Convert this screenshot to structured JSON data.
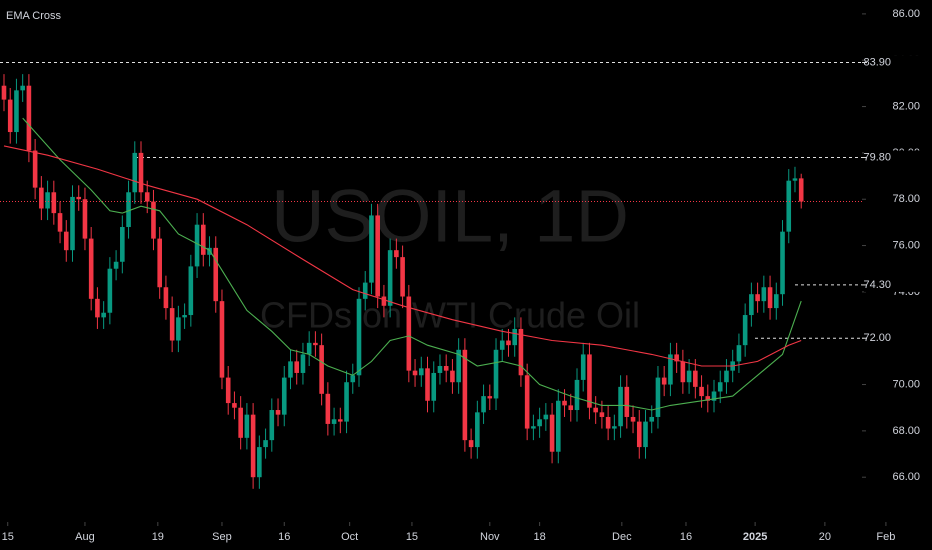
{
  "chart_data": {
    "type": "candlestick",
    "title": "EMA Cross",
    "watermark_title": "USOIL, 1D",
    "watermark_subtitle": "CFDs on WTI Crude Oil",
    "up_color": "#089981",
    "down_color": "#f23645",
    "x": [
      0,
      1,
      2,
      3,
      4,
      5,
      6,
      7,
      8,
      9,
      10,
      11,
      12,
      13,
      14,
      15,
      16,
      17,
      18,
      19,
      20,
      21,
      22,
      23,
      24,
      25,
      26,
      27,
      28,
      29,
      30,
      31,
      32,
      33,
      34,
      35,
      36,
      37,
      38,
      39,
      40,
      41,
      42,
      43,
      44,
      45,
      46,
      47,
      48,
      49,
      50,
      51,
      52,
      53,
      54,
      55,
      56,
      57,
      58,
      59,
      60,
      61,
      62,
      63,
      64,
      65,
      66,
      67,
      68,
      69,
      70,
      71,
      72,
      73,
      74,
      75,
      76,
      77,
      78,
      79,
      80,
      81,
      82,
      83,
      84,
      85,
      86,
      87,
      88,
      89,
      90,
      91,
      92,
      93,
      94,
      95,
      96,
      97,
      98,
      99,
      100,
      101,
      102,
      103,
      104,
      105,
      106,
      107,
      108,
      109,
      110,
      111,
      112,
      113,
      114,
      115,
      116,
      117,
      118,
      119,
      120,
      121,
      122,
      123,
      124,
      125,
      126,
      127,
      128
    ],
    "open": [
      82.9,
      82.3,
      80.9,
      82.7,
      82.9,
      80.1,
      78.5,
      77.6,
      78.3,
      77.4,
      76.6,
      75.8,
      78.1,
      78.0,
      76.3,
      73.7,
      72.9,
      73.1,
      75.0,
      75.3,
      76.8,
      78.3,
      80.0,
      78.3,
      77.9,
      76.3,
      74.2,
      73.3,
      71.9,
      72.9,
      73.0,
      75.1,
      76.9,
      75.6,
      75.9,
      73.6,
      70.3,
      69.2,
      69.0,
      67.7,
      68.7,
      66.0,
      67.3,
      67.6,
      68.9,
      68.7,
      70.3,
      71.0,
      70.5,
      71.3,
      71.8,
      71.7,
      69.6,
      68.3,
      68.5,
      68.4,
      70.1,
      70.4,
      73.7,
      74.4,
      77.3,
      73.8,
      73.4,
      75.8,
      75.5,
      73.8,
      70.6,
      70.4,
      70.7,
      69.3,
      70.5,
      70.8,
      70.6,
      70.1,
      71.5,
      67.6,
      67.3,
      68.8,
      69.5,
      69.4,
      71.5,
      71.9,
      71.7,
      72.4,
      70.4,
      68.1,
      68.2,
      68.5,
      68.7,
      67.1,
      69.3,
      69.1,
      68.9,
      70.2,
      71.3,
      69.0,
      68.8,
      68.6,
      68.1,
      68.2,
      69.9,
      68.6,
      68.4,
      67.3,
      68.4,
      68.6,
      70.3,
      70.0,
      71.3,
      71.0,
      70.1,
      70.6,
      69.9,
      69.5,
      69.3,
      69.7,
      70.1,
      70.6,
      71.0,
      71.7,
      73.0,
      73.9,
      73.6,
      74.2,
      73.3,
      73.9,
      76.6,
      78.8,
      78.9
    ],
    "high": [
      83.4,
      82.8,
      83.2,
      83.4,
      83.4,
      80.6,
      79.0,
      78.8,
      78.8,
      77.9,
      77.1,
      78.6,
      78.6,
      78.5,
      76.8,
      74.2,
      73.6,
      75.5,
      75.8,
      77.3,
      78.8,
      80.5,
      80.5,
      78.8,
      78.4,
      76.8,
      74.7,
      73.8,
      73.4,
      73.5,
      75.6,
      77.4,
      77.4,
      76.4,
      76.4,
      74.1,
      70.8,
      69.7,
      69.5,
      69.2,
      69.2,
      67.8,
      68.1,
      69.4,
      69.4,
      70.8,
      71.5,
      71.5,
      71.8,
      72.3,
      72.3,
      72.2,
      70.1,
      69.0,
      69.0,
      70.6,
      70.9,
      74.2,
      74.9,
      77.8,
      77.8,
      74.3,
      76.3,
      76.3,
      76.0,
      74.3,
      71.1,
      71.2,
      71.2,
      71.0,
      71.3,
      71.3,
      71.1,
      72.0,
      72.0,
      68.1,
      69.3,
      70.0,
      70.0,
      72.0,
      72.4,
      72.4,
      72.9,
      72.9,
      70.9,
      68.7,
      69.0,
      69.2,
      69.2,
      69.8,
      69.8,
      69.6,
      70.7,
      71.8,
      71.8,
      69.5,
      69.3,
      69.1,
      68.7,
      70.4,
      70.4,
      69.1,
      68.9,
      68.9,
      69.1,
      70.8,
      70.8,
      71.8,
      71.8,
      71.5,
      71.1,
      71.1,
      70.4,
      70.0,
      70.2,
      70.6,
      71.1,
      71.5,
      72.2,
      73.5,
      74.4,
      74.4,
      74.7,
      74.7,
      74.4,
      77.1,
      79.3,
      79.4,
      79.1
    ],
    "low": [
      81.8,
      80.4,
      80.4,
      82.2,
      79.6,
      78.0,
      77.1,
      77.1,
      76.9,
      76.1,
      75.3,
      75.3,
      77.5,
      75.8,
      73.2,
      72.4,
      72.4,
      72.6,
      74.5,
      74.8,
      76.3,
      77.8,
      77.8,
      77.4,
      75.8,
      73.7,
      72.8,
      71.4,
      71.4,
      72.4,
      72.5,
      74.6,
      75.1,
      75.1,
      73.1,
      69.8,
      68.7,
      68.5,
      67.2,
      67.2,
      65.5,
      65.5,
      66.8,
      67.1,
      68.2,
      68.2,
      69.8,
      70.0,
      70.0,
      70.8,
      71.2,
      69.1,
      67.8,
      67.8,
      67.9,
      67.9,
      69.6,
      69.9,
      73.2,
      73.9,
      73.3,
      72.9,
      72.9,
      75.0,
      73.3,
      70.1,
      69.9,
      69.9,
      68.8,
      68.8,
      70.0,
      70.1,
      69.6,
      69.6,
      67.1,
      66.8,
      66.8,
      68.3,
      68.9,
      68.9,
      71.0,
      71.2,
      71.2,
      69.9,
      67.6,
      67.6,
      67.7,
      68.0,
      66.6,
      66.6,
      68.6,
      68.4,
      68.4,
      69.7,
      68.5,
      68.3,
      68.1,
      67.6,
      67.6,
      67.7,
      68.1,
      67.9,
      66.8,
      66.8,
      67.9,
      68.1,
      69.5,
      69.5,
      70.5,
      69.6,
      69.6,
      69.4,
      69.0,
      68.8,
      68.8,
      69.2,
      69.6,
      70.1,
      70.5,
      71.2,
      72.5,
      73.1,
      73.1,
      72.8,
      72.8,
      73.4,
      76.1,
      78.3,
      77.6
    ],
    "close": [
      82.3,
      80.9,
      82.7,
      82.9,
      80.1,
      78.5,
      77.6,
      78.3,
      77.4,
      76.6,
      75.8,
      78.1,
      78.0,
      76.3,
      73.7,
      72.9,
      73.1,
      75.0,
      75.3,
      76.8,
      78.3,
      80.0,
      78.3,
      77.9,
      76.3,
      74.2,
      73.3,
      71.9,
      72.9,
      73.0,
      75.1,
      76.9,
      75.6,
      75.9,
      73.6,
      70.3,
      69.2,
      69.0,
      67.7,
      68.7,
      66.0,
      67.3,
      67.6,
      68.9,
      68.7,
      70.3,
      71.0,
      70.5,
      71.3,
      71.8,
      71.7,
      69.6,
      68.3,
      68.5,
      68.4,
      70.1,
      70.4,
      73.7,
      74.4,
      77.3,
      73.8,
      73.4,
      75.8,
      75.5,
      73.8,
      70.6,
      70.4,
      70.7,
      69.3,
      70.5,
      70.8,
      70.6,
      70.1,
      71.5,
      67.6,
      67.3,
      68.8,
      69.5,
      69.4,
      71.5,
      71.9,
      71.7,
      72.4,
      70.4,
      68.1,
      68.2,
      68.5,
      68.7,
      67.1,
      69.3,
      69.1,
      68.9,
      70.2,
      71.3,
      69.0,
      68.8,
      68.6,
      68.1,
      68.2,
      69.9,
      68.6,
      68.4,
      67.3,
      68.4,
      68.6,
      70.3,
      70.0,
      71.3,
      71.0,
      70.1,
      70.6,
      69.9,
      69.5,
      69.3,
      69.7,
      70.1,
      70.6,
      71.0,
      71.7,
      73.0,
      73.9,
      73.6,
      74.2,
      73.3,
      73.9,
      76.6,
      78.8,
      78.9,
      77.9
    ],
    "lines": [
      {
        "color": "#4caf50",
        "x": [
          3,
          9,
          14,
          17,
          19,
          22,
          25,
          28,
          33,
          36,
          39,
          43,
          46,
          49,
          52,
          56,
          59,
          62,
          65,
          68,
          73,
          76,
          80,
          83,
          86,
          91,
          96,
          100,
          104,
          107,
          112,
          117,
          121,
          125,
          128
        ],
        "values": [
          81.5,
          79.7,
          78.4,
          77.5,
          77.4,
          77.7,
          77.5,
          76.5,
          75.8,
          74.5,
          73.2,
          72.3,
          71.5,
          71.3,
          70.8,
          70.4,
          71.0,
          71.9,
          72.1,
          71.7,
          71.3,
          70.8,
          71.0,
          70.8,
          70.0,
          69.5,
          69.1,
          69.1,
          68.9,
          69.1,
          69.3,
          69.5,
          70.4,
          71.3,
          73.6
        ]
      },
      {
        "color": "#f23645",
        "x": [
          0,
          7,
          15,
          23,
          31,
          39,
          48,
          56,
          64,
          72,
          80,
          88,
          96,
          104,
          112,
          117,
          121,
          126,
          128
        ],
        "values": [
          80.3,
          79.9,
          79.3,
          78.6,
          78.0,
          76.9,
          75.4,
          74.1,
          73.4,
          72.8,
          72.3,
          71.9,
          71.7,
          71.3,
          70.8,
          70.8,
          71.0,
          71.7,
          71.9
        ]
      }
    ],
    "levels": [
      {
        "value": 83.9,
        "label": "83.90"
      },
      {
        "value": 79.8,
        "label": "79.80"
      },
      {
        "value": 74.3,
        "label": "74.30"
      },
      {
        "value": 72.0,
        "label": "72.00"
      }
    ],
    "ylim": [
      64.8,
      86.6
    ],
    "yticks": [
      {
        "value": 66,
        "label": "66.00"
      },
      {
        "value": 68,
        "label": "68.00"
      },
      {
        "value": 70,
        "label": "70.00"
      },
      {
        "value": 72,
        "label": "72.00"
      },
      {
        "value": 74,
        "label": "74.00"
      },
      {
        "value": 76,
        "label": "76.00"
      },
      {
        "value": 78,
        "label": "78.00"
      },
      {
        "value": 80,
        "label": "80.00"
      },
      {
        "value": 82,
        "label": "82.00"
      },
      {
        "value": 84,
        "label": "84.00"
      },
      {
        "value": 86,
        "label": "86.00"
      }
    ],
    "xlim": [
      -0.64,
      149
    ],
    "xticks": [
      {
        "value": 0.6,
        "label": "15"
      },
      {
        "value": 13,
        "label": "Aug"
      },
      {
        "value": 24.7,
        "label": "19"
      },
      {
        "value": 35,
        "label": "Sep"
      },
      {
        "value": 45,
        "label": "16"
      },
      {
        "value": 55.5,
        "label": "Oct"
      },
      {
        "value": 65.5,
        "label": "15"
      },
      {
        "value": 78,
        "label": "Nov"
      },
      {
        "value": 86,
        "label": "18"
      },
      {
        "value": 99.2,
        "label": "Dec"
      },
      {
        "value": 109.5,
        "label": "16"
      },
      {
        "value": 120.6,
        "label": "2025"
      },
      {
        "value": 131.8,
        "label": "20"
      },
      {
        "value": 141.6,
        "label": "Feb"
      }
    ]
  }
}
